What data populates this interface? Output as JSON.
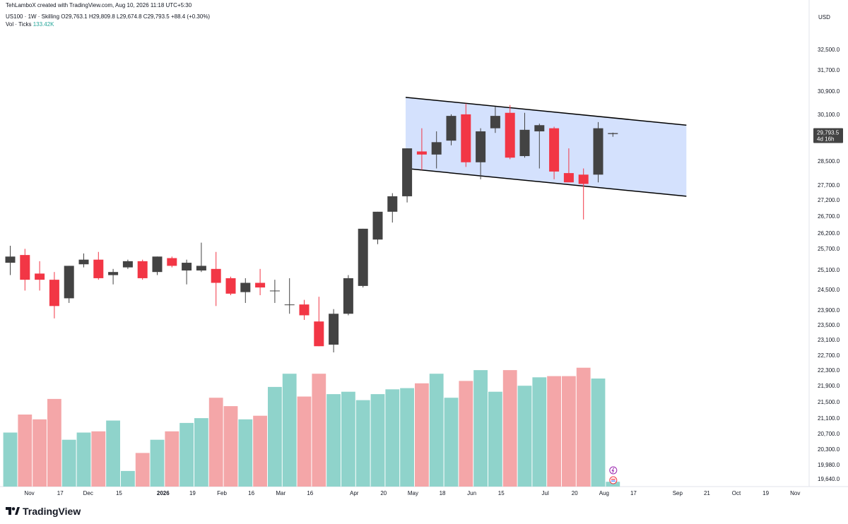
{
  "header": {
    "created_by": "TehLamboX created with TradingView.com, Aug 10, 2026 11:18 UTC+5:30",
    "symbol": "US100 · 1W · Skilling",
    "ohlc": "O29,763.1 H29,809.8 L29,674.8 C29,793.5 +88.4 (+0.30%)",
    "vol_label": "Vol · Ticks",
    "vol_value": "133.42K"
  },
  "currency": "USD",
  "logo_text": "TradingView",
  "colors": {
    "up": "#434343",
    "down": "#f23645",
    "vol_up": "#8fd3cb",
    "vol_down": "#f4a6a8",
    "channel_fill": "#d4e1fd",
    "channel_line": "#000000",
    "last_price_bg": "#434343"
  },
  "chart_data": {
    "type": "candlestick",
    "timeframe": "1W",
    "ylim": [
      19640,
      32900
    ],
    "price_ticks": [
      "32,500.0",
      "31,700.0",
      "30,900.0",
      "30,100.0",
      "29,300.0",
      "28,500.0",
      "27,700.0",
      "27,200.0",
      "26,700.0",
      "26,200.0",
      "25,700.0",
      "25,100.0",
      "24,500.0",
      "23,900.0",
      "23,500.0",
      "23,100.0",
      "22,700.0",
      "22,300.0",
      "21,900.0",
      "21,500.0",
      "21,100.0",
      "20,700.0",
      "20,300.0",
      "19,980.0",
      "19,640.0"
    ],
    "last_price": {
      "value": "29,793.5",
      "countdown": "4d 16h"
    },
    "x_labels": [
      {
        "text": "Nov",
        "i": 1.3
      },
      {
        "text": "17",
        "i": 3.4
      },
      {
        "text": "Dec",
        "i": 5.3
      },
      {
        "text": "15",
        "i": 7.4
      },
      {
        "text": "2026",
        "i": 10.4,
        "bold": true
      },
      {
        "text": "19",
        "i": 12.4
      },
      {
        "text": "Feb",
        "i": 14.4
      },
      {
        "text": "16",
        "i": 16.4
      },
      {
        "text": "Mar",
        "i": 18.4
      },
      {
        "text": "16",
        "i": 20.4
      },
      {
        "text": "Apr",
        "i": 23.4
      },
      {
        "text": "20",
        "i": 25.4
      },
      {
        "text": "May",
        "i": 27.4
      },
      {
        "text": "18",
        "i": 29.4
      },
      {
        "text": "Jun",
        "i": 31.4
      },
      {
        "text": "15",
        "i": 33.4
      },
      {
        "text": "Jul",
        "i": 36.4
      },
      {
        "text": "20",
        "i": 38.4
      },
      {
        "text": "Aug",
        "i": 40.4
      },
      {
        "text": "17",
        "i": 42.4
      },
      {
        "text": "Sep",
        "i": 45.4
      },
      {
        "text": "21",
        "i": 47.4
      },
      {
        "text": "Oct",
        "i": 49.4
      },
      {
        "text": "19",
        "i": 51.4
      },
      {
        "text": "Nov",
        "i": 53.4
      }
    ],
    "candles": [
      {
        "o": 25600,
        "h": 26150,
        "l": 25200,
        "c": 25800
      },
      {
        "o": 25850,
        "h": 26050,
        "l": 24700,
        "c": 25050
      },
      {
        "o": 25250,
        "h": 25650,
        "l": 24700,
        "c": 25050
      },
      {
        "o": 25050,
        "h": 25300,
        "l": 23800,
        "c": 24200
      },
      {
        "o": 24450,
        "h": 25500,
        "l": 24300,
        "c": 25500
      },
      {
        "o": 25550,
        "h": 25900,
        "l": 25450,
        "c": 25700
      },
      {
        "o": 25700,
        "h": 25950,
        "l": 25050,
        "c": 25100
      },
      {
        "o": 25200,
        "h": 25400,
        "l": 24900,
        "c": 25300
      },
      {
        "o": 25450,
        "h": 25700,
        "l": 25400,
        "c": 25650
      },
      {
        "o": 25650,
        "h": 25700,
        "l": 25050,
        "c": 25100
      },
      {
        "o": 25300,
        "h": 25800,
        "l": 25200,
        "c": 25800
      },
      {
        "o": 25750,
        "h": 25800,
        "l": 25450,
        "c": 25500
      },
      {
        "o": 25350,
        "h": 25700,
        "l": 24900,
        "c": 25600
      },
      {
        "o": 25350,
        "h": 26250,
        "l": 25300,
        "c": 25500
      },
      {
        "o": 25400,
        "h": 25950,
        "l": 24200,
        "c": 24950
      },
      {
        "o": 25100,
        "h": 25150,
        "l": 24550,
        "c": 24600
      },
      {
        "o": 24650,
        "h": 25100,
        "l": 24300,
        "c": 24950
      },
      {
        "o": 24950,
        "h": 25400,
        "l": 24550,
        "c": 24800
      },
      {
        "o": 24700,
        "h": 25050,
        "l": 24300,
        "c": 24700
      },
      {
        "o": 24250,
        "h": 25100,
        "l": 23950,
        "c": 24250
      },
      {
        "o": 24250,
        "h": 24400,
        "l": 23750,
        "c": 23900
      },
      {
        "o": 23700,
        "h": 24500,
        "l": 22900,
        "c": 22900
      },
      {
        "o": 22950,
        "h": 24100,
        "l": 22700,
        "c": 23950
      },
      {
        "o": 23950,
        "h": 25200,
        "l": 23900,
        "c": 25100
      },
      {
        "o": 24850,
        "h": 26700,
        "l": 24800,
        "c": 26700
      },
      {
        "o": 26350,
        "h": 27250,
        "l": 26200,
        "c": 27250
      },
      {
        "o": 27250,
        "h": 27850,
        "l": 26900,
        "c": 27750
      },
      {
        "o": 27750,
        "h": 29300,
        "l": 27550,
        "c": 29300
      },
      {
        "o": 29200,
        "h": 29950,
        "l": 28600,
        "c": 29100
      },
      {
        "o": 29100,
        "h": 29850,
        "l": 28650,
        "c": 29500
      },
      {
        "o": 29550,
        "h": 30400,
        "l": 29400,
        "c": 30350
      },
      {
        "o": 30400,
        "h": 30750,
        "l": 28700,
        "c": 28850
      },
      {
        "o": 28850,
        "h": 29950,
        "l": 28300,
        "c": 29850
      },
      {
        "o": 29950,
        "h": 30650,
        "l": 29800,
        "c": 30350
      },
      {
        "o": 30450,
        "h": 30700,
        "l": 28950,
        "c": 29000
      },
      {
        "o": 29050,
        "h": 30450,
        "l": 29000,
        "c": 29900
      },
      {
        "o": 29850,
        "h": 30100,
        "l": 28650,
        "c": 30050
      },
      {
        "o": 29950,
        "h": 30000,
        "l": 28300,
        "c": 28550
      },
      {
        "o": 28500,
        "h": 29300,
        "l": 28250,
        "c": 28200
      },
      {
        "o": 28450,
        "h": 28650,
        "l": 27000,
        "c": 28150
      },
      {
        "o": 28450,
        "h": 30150,
        "l": 28200,
        "c": 29950
      },
      {
        "o": 29763.1,
        "h": 29809.8,
        "l": 29674.8,
        "c": 29793.5
      }
    ],
    "volume": {
      "max": 1.0,
      "values": [
        0.45,
        0.6,
        0.56,
        0.73,
        0.39,
        0.45,
        0.46,
        0.55,
        0.13,
        0.28,
        0.39,
        0.46,
        0.53,
        0.57,
        0.74,
        0.67,
        0.56,
        0.59,
        0.83,
        0.94,
        0.75,
        0.94,
        0.77,
        0.79,
        0.72,
        0.77,
        0.81,
        0.82,
        0.86,
        0.94,
        0.74,
        0.88,
        0.97,
        0.79,
        0.97,
        0.84,
        0.91,
        0.92,
        0.92,
        0.99,
        0.9,
        0.04
      ]
    },
    "channel": {
      "upper": {
        "i1": 26.9,
        "p1": 30950,
        "i2": 46.0,
        "p2": 30050
      },
      "lower": {
        "i1": 26.9,
        "p1": 28650,
        "i2": 46.0,
        "p2": 27750
      }
    }
  }
}
